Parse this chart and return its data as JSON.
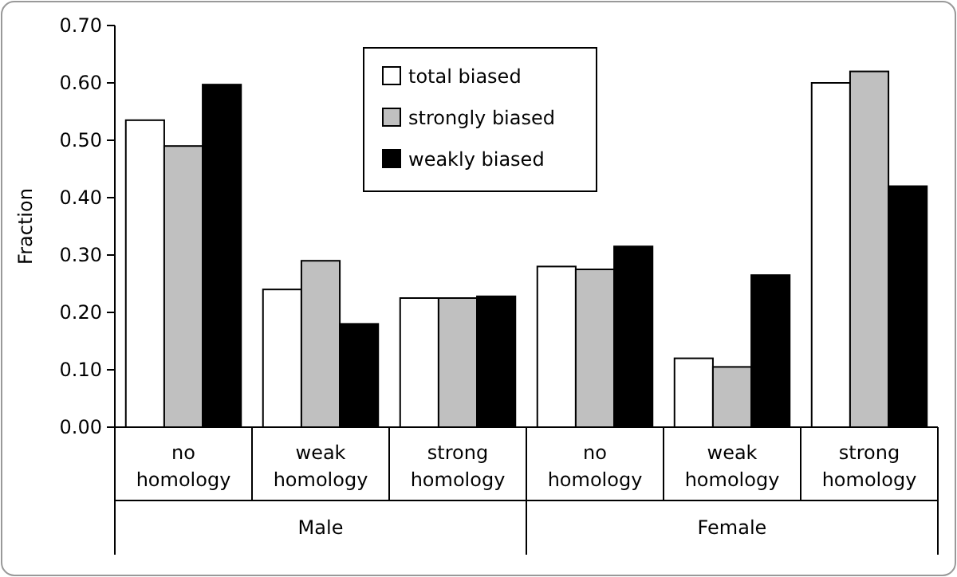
{
  "chart_data": {
    "type": "bar",
    "ylabel": "Fraction",
    "categories": [
      "no homology",
      "weak homology",
      "strong homology",
      "no homology",
      "weak homology",
      "strong homology"
    ],
    "annotations": [
      "Male",
      "Female"
    ],
    "series": [
      {
        "name": "total biased",
        "color": "#ffffff",
        "values": [
          0.535,
          0.24,
          0.225,
          0.28,
          0.12,
          0.6
        ]
      },
      {
        "name": "strongly biased",
        "color": "#c0c0c0",
        "values": [
          0.49,
          0.29,
          0.225,
          0.275,
          0.105,
          0.62
        ]
      },
      {
        "name": "weakly biased",
        "color": "#000000",
        "values": [
          0.597,
          0.18,
          0.228,
          0.315,
          0.265,
          0.42
        ]
      }
    ],
    "ylim": [
      0,
      0.7
    ],
    "yticks": [
      {
        "value": 0,
        "label": "0.00"
      },
      {
        "value": 0.1,
        "label": "0.10"
      },
      {
        "value": 0.2,
        "label": "0.20"
      },
      {
        "value": 0.3,
        "label": "0.30"
      },
      {
        "value": 0.4,
        "label": "0.40"
      },
      {
        "value": 0.5,
        "label": "0.50"
      },
      {
        "value": 0.6,
        "label": "0.60"
      },
      {
        "value": 0.7,
        "label": "0.70"
      }
    ],
    "grid": false,
    "legend": "top"
  }
}
